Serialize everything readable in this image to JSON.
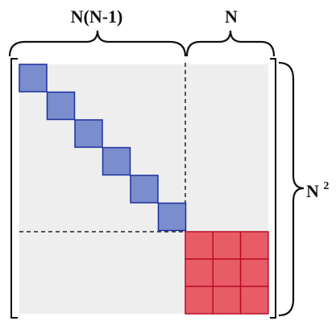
{
  "labels": {
    "top_left": "N(N-1)",
    "top_right": "N",
    "right_main": "N",
    "right_superscript": "2"
  },
  "diagram": {
    "diagonal_block_count": 6,
    "red_grid_rows": 3,
    "red_grid_cols": 3
  },
  "colors": {
    "matrix_background": "#eeeeee",
    "blue_fill": "#7a8dcc",
    "blue_stroke": "#1c2f9f",
    "red_fill": "#e85c68",
    "red_stroke": "#b90f24",
    "dashed_line": "#222222",
    "bracket_stroke": "#111111"
  }
}
